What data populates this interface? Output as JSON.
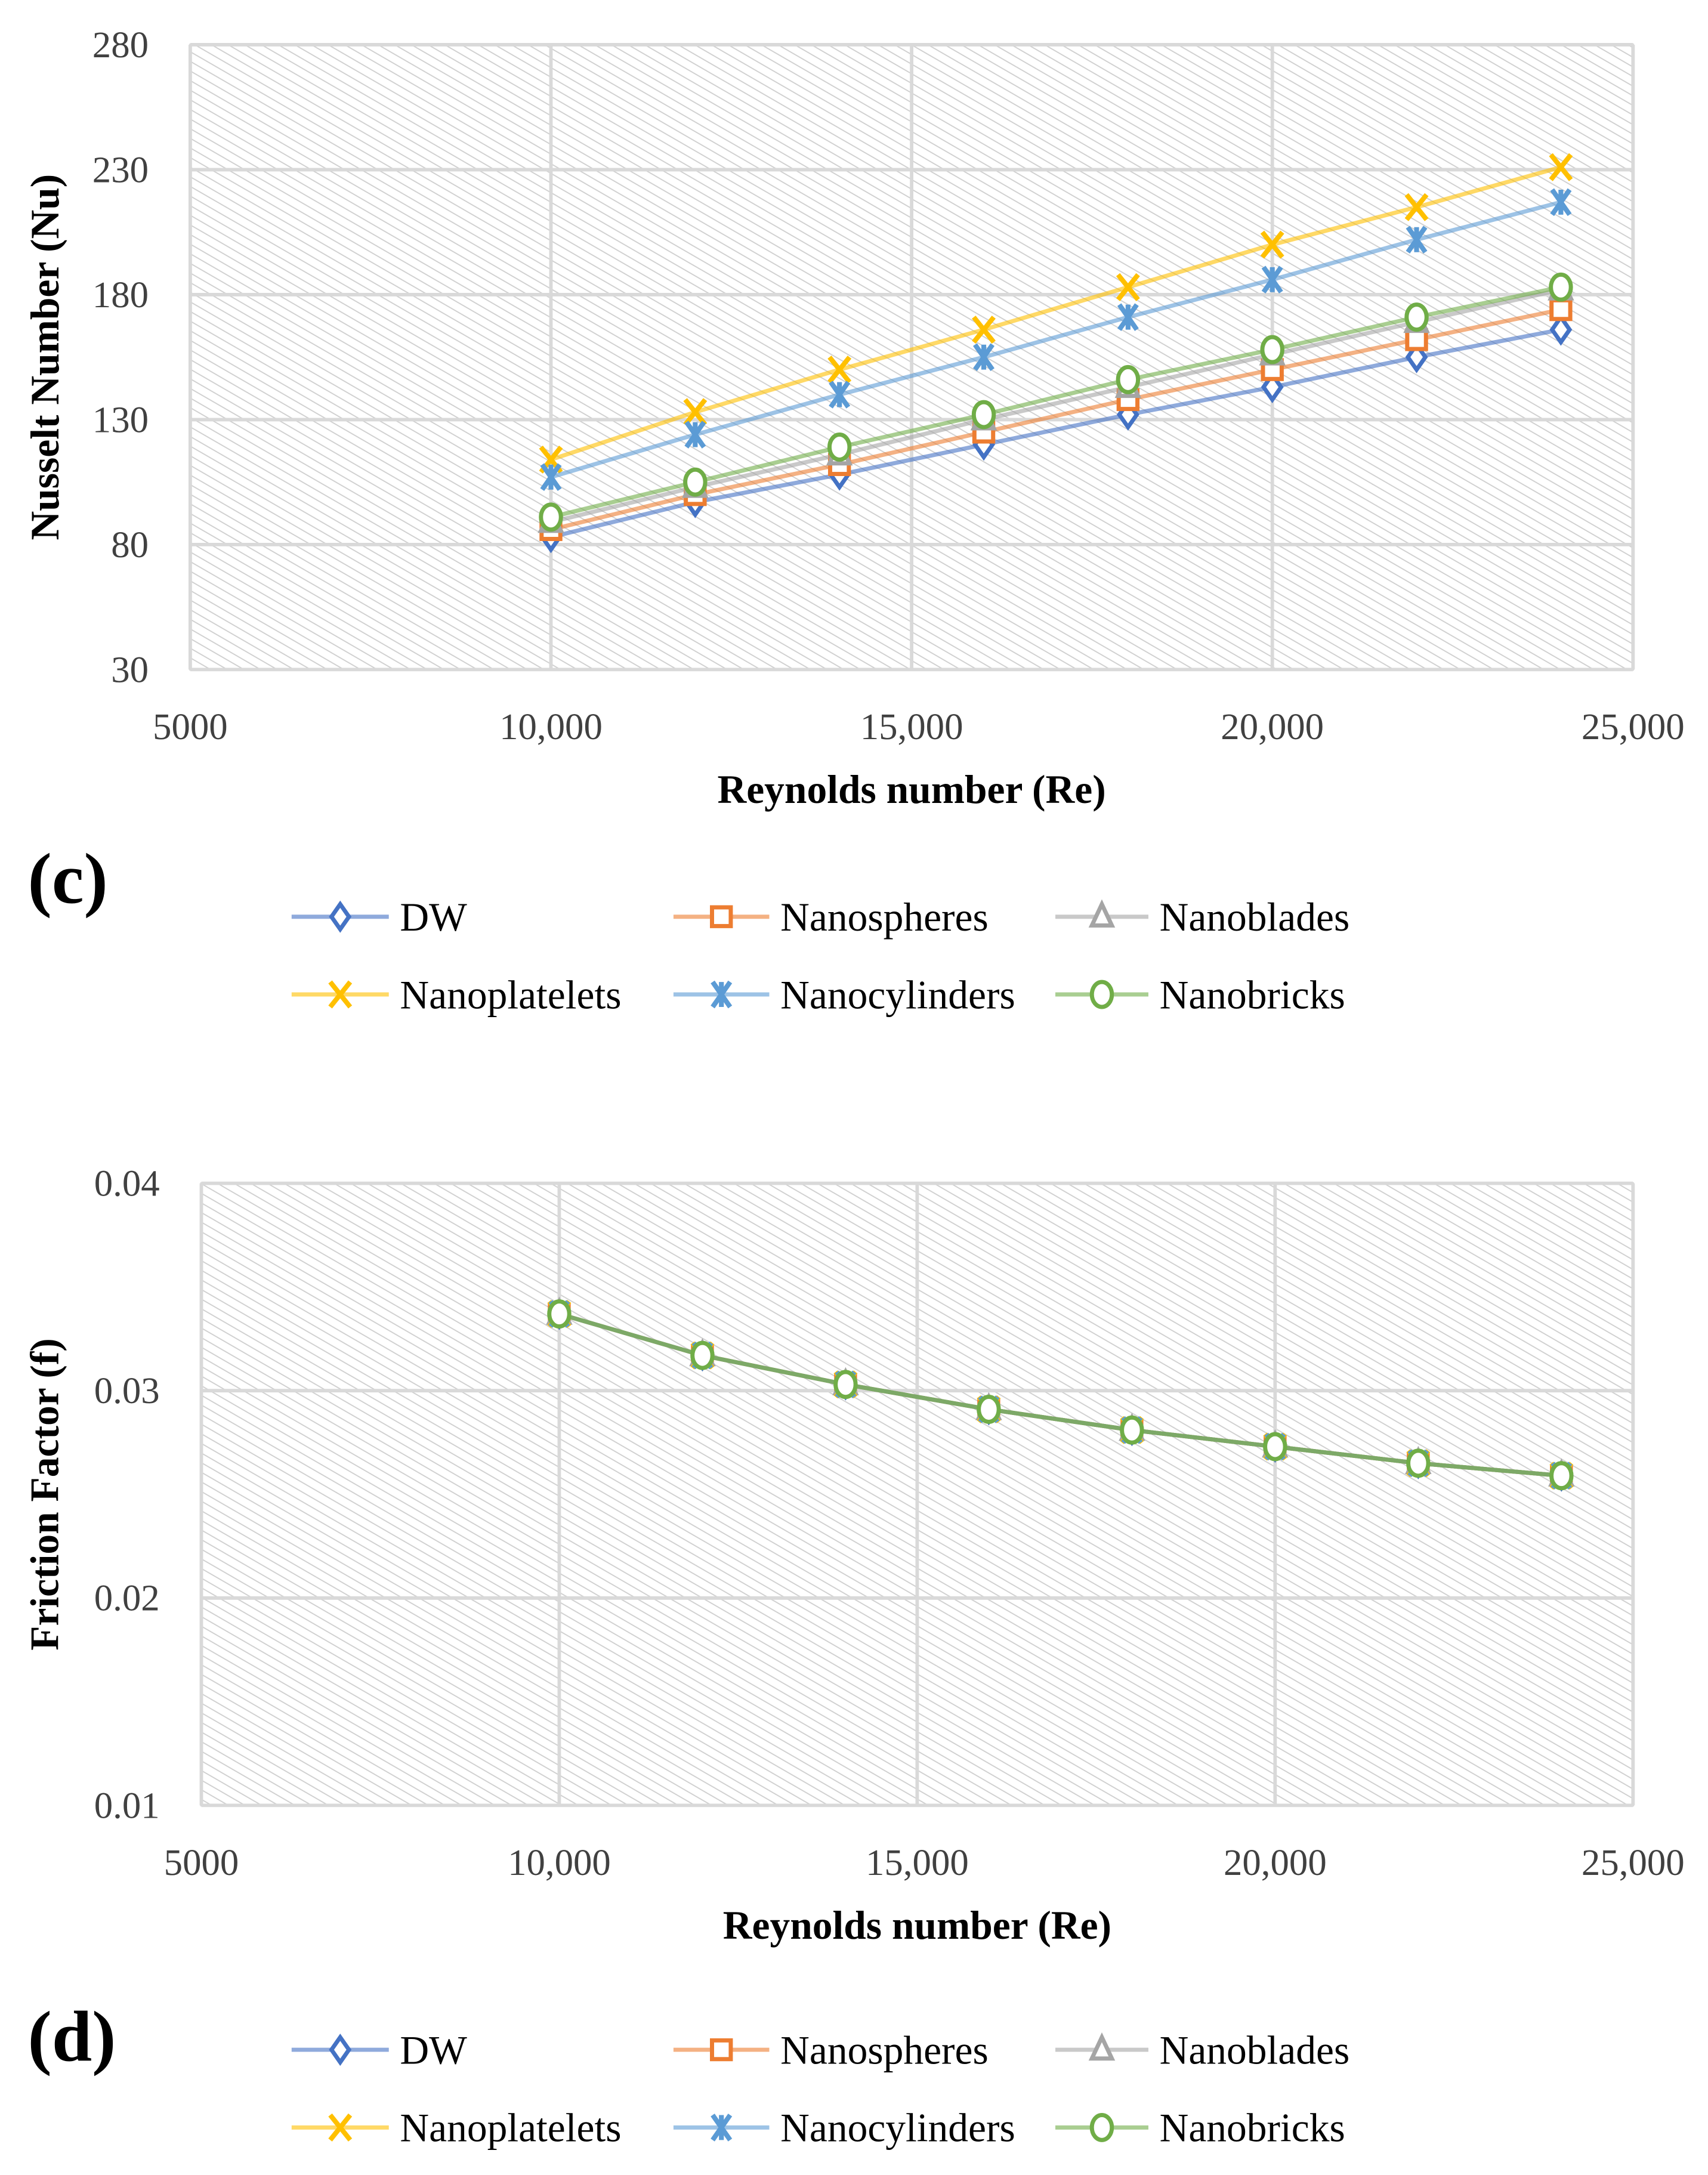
{
  "chart_data": [
    {
      "type": "line",
      "panel_label": "(c)",
      "xlabel": "Reynolds number (Re)",
      "ylabel": "Nusselt Number (Nu)",
      "xlim": [
        5000,
        25000
      ],
      "ylim": [
        30,
        280
      ],
      "xticks": [
        5000,
        10000,
        15000,
        20000,
        25000
      ],
      "xtick_labels": [
        "5000",
        "10,000",
        "15,000",
        "20,000",
        "25,000"
      ],
      "yticks": [
        30,
        80,
        130,
        180,
        230,
        280
      ],
      "ytick_labels": [
        "30",
        "80",
        "130",
        "180",
        "230",
        "280"
      ],
      "grid": true,
      "legend_position": "bottom",
      "x": [
        10000,
        12000,
        14000,
        16000,
        18000,
        20000,
        22000,
        24000
      ],
      "series": [
        {
          "name": "DW",
          "marker": "diamond",
          "color": "#4472C4",
          "values": [
            83,
            97,
            108,
            120,
            132,
            143,
            155,
            166
          ]
        },
        {
          "name": "Nanospheres",
          "marker": "square",
          "color": "#ED7D31",
          "values": [
            86,
            100,
            112,
            125,
            138,
            150,
            162,
            174
          ]
        },
        {
          "name": "Nanoblades",
          "marker": "triangle",
          "color": "#A5A5A5",
          "values": [
            89,
            103,
            116,
            130,
            143,
            156,
            169,
            182
          ]
        },
        {
          "name": "Nanoplatelets",
          "marker": "x",
          "color": "#FFC000",
          "values": [
            114,
            133,
            150,
            166,
            183,
            200,
            215,
            231
          ]
        },
        {
          "name": "Nanocylinders",
          "marker": "asterisk",
          "color": "#5B9BD5",
          "values": [
            107,
            124,
            140,
            155,
            171,
            186,
            202,
            217
          ]
        },
        {
          "name": "Nanobricks",
          "marker": "circle",
          "color": "#70AD47",
          "values": [
            91,
            105,
            119,
            132,
            146,
            158,
            171,
            183
          ]
        }
      ]
    },
    {
      "type": "line",
      "panel_label": "(d)",
      "xlabel": "Reynolds number (Re)",
      "ylabel": "Friction Factor (f)",
      "xlim": [
        5000,
        25000
      ],
      "ylim": [
        0.01,
        0.04
      ],
      "xticks": [
        5000,
        10000,
        15000,
        20000,
        25000
      ],
      "xtick_labels": [
        "5000",
        "10,000",
        "15,000",
        "20,000",
        "25,000"
      ],
      "yticks": [
        0.01,
        0.02,
        0.03,
        0.04
      ],
      "ytick_labels": [
        "0.01",
        "0.02",
        "0.03",
        "0.04"
      ],
      "grid": true,
      "legend_position": "bottom",
      "x": [
        10000,
        12000,
        14000,
        16000,
        18000,
        20000,
        22000,
        24000
      ],
      "series": [
        {
          "name": "DW",
          "marker": "diamond",
          "color": "#4472C4",
          "values": [
            0.0337,
            0.0317,
            0.0303,
            0.0291,
            0.0281,
            0.0273,
            0.0265,
            0.0259
          ]
        },
        {
          "name": "Nanospheres",
          "marker": "square",
          "color": "#ED7D31",
          "values": [
            0.0337,
            0.0317,
            0.0303,
            0.0291,
            0.0281,
            0.0273,
            0.0265,
            0.0259
          ]
        },
        {
          "name": "Nanoblades",
          "marker": "triangle",
          "color": "#A5A5A5",
          "values": [
            0.0337,
            0.0317,
            0.0303,
            0.0291,
            0.0281,
            0.0273,
            0.0265,
            0.0259
          ]
        },
        {
          "name": "Nanoplatelets",
          "marker": "x",
          "color": "#FFC000",
          "values": [
            0.0337,
            0.0317,
            0.0303,
            0.0291,
            0.0281,
            0.0273,
            0.0265,
            0.0259
          ]
        },
        {
          "name": "Nanocylinders",
          "marker": "asterisk",
          "color": "#5B9BD5",
          "values": [
            0.0337,
            0.0317,
            0.0303,
            0.0291,
            0.0281,
            0.0273,
            0.0265,
            0.0259
          ]
        },
        {
          "name": "Nanobricks",
          "marker": "circle",
          "color": "#70AD47",
          "values": [
            0.0337,
            0.0317,
            0.0303,
            0.0291,
            0.0281,
            0.0273,
            0.0265,
            0.0259
          ]
        }
      ]
    }
  ]
}
